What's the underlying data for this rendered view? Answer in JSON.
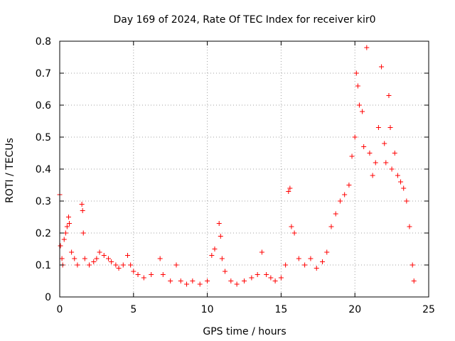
{
  "chart_data": {
    "type": "scatter",
    "title": "Day 169 of 2024, Rate Of TEC Index for receiver kir0",
    "xlabel": "GPS time / hours",
    "ylabel": "ROTI / TECUs",
    "xlim": [
      0,
      25
    ],
    "ylim": [
      0,
      0.8
    ],
    "x_ticks": [
      "0",
      "5",
      "10",
      "15",
      "20",
      "25"
    ],
    "y_ticks": [
      "0",
      "0.1",
      "0.2",
      "0.3",
      "0.4",
      "0.5",
      "0.6",
      "0.7",
      "0.8"
    ],
    "grid": true,
    "marker": "+",
    "color": "#ff0000",
    "series": [
      {
        "name": "ROTI",
        "points": [
          [
            0.0,
            0.32
          ],
          [
            0.05,
            0.16
          ],
          [
            0.15,
            0.12
          ],
          [
            0.2,
            0.1
          ],
          [
            0.3,
            0.18
          ],
          [
            0.4,
            0.2
          ],
          [
            0.5,
            0.22
          ],
          [
            0.6,
            0.25
          ],
          [
            0.65,
            0.23
          ],
          [
            0.8,
            0.14
          ],
          [
            1.0,
            0.12
          ],
          [
            1.2,
            0.1
          ],
          [
            1.5,
            0.29
          ],
          [
            1.55,
            0.27
          ],
          [
            1.6,
            0.2
          ],
          [
            1.7,
            0.12
          ],
          [
            2.0,
            0.1
          ],
          [
            2.3,
            0.11
          ],
          [
            2.5,
            0.12
          ],
          [
            2.7,
            0.14
          ],
          [
            3.0,
            0.13
          ],
          [
            3.3,
            0.12
          ],
          [
            3.5,
            0.11
          ],
          [
            3.8,
            0.1
          ],
          [
            4.0,
            0.09
          ],
          [
            4.3,
            0.1
          ],
          [
            4.6,
            0.13
          ],
          [
            4.8,
            0.1
          ],
          [
            5.0,
            0.08
          ],
          [
            5.3,
            0.07
          ],
          [
            5.7,
            0.06
          ],
          [
            6.2,
            0.07
          ],
          [
            6.8,
            0.12
          ],
          [
            7.0,
            0.07
          ],
          [
            7.5,
            0.05
          ],
          [
            7.9,
            0.1
          ],
          [
            8.2,
            0.05
          ],
          [
            8.6,
            0.04
          ],
          [
            9.0,
            0.05
          ],
          [
            9.5,
            0.04
          ],
          [
            10.0,
            0.05
          ],
          [
            10.3,
            0.13
          ],
          [
            10.5,
            0.15
          ],
          [
            10.8,
            0.23
          ],
          [
            10.9,
            0.19
          ],
          [
            11.0,
            0.12
          ],
          [
            11.2,
            0.08
          ],
          [
            11.6,
            0.05
          ],
          [
            12.0,
            0.04
          ],
          [
            12.5,
            0.05
          ],
          [
            13.0,
            0.06
          ],
          [
            13.4,
            0.07
          ],
          [
            13.7,
            0.14
          ],
          [
            14.0,
            0.07
          ],
          [
            14.3,
            0.06
          ],
          [
            14.6,
            0.05
          ],
          [
            15.0,
            0.06
          ],
          [
            15.3,
            0.1
          ],
          [
            15.5,
            0.33
          ],
          [
            15.6,
            0.34
          ],
          [
            15.7,
            0.22
          ],
          [
            15.9,
            0.2
          ],
          [
            16.2,
            0.12
          ],
          [
            16.6,
            0.1
          ],
          [
            17.0,
            0.12
          ],
          [
            17.4,
            0.09
          ],
          [
            17.8,
            0.11
          ],
          [
            18.1,
            0.14
          ],
          [
            18.4,
            0.22
          ],
          [
            18.7,
            0.26
          ],
          [
            19.0,
            0.3
          ],
          [
            19.3,
            0.32
          ],
          [
            19.6,
            0.35
          ],
          [
            19.8,
            0.44
          ],
          [
            20.0,
            0.5
          ],
          [
            20.1,
            0.7
          ],
          [
            20.2,
            0.66
          ],
          [
            20.3,
            0.6
          ],
          [
            20.5,
            0.58
          ],
          [
            20.6,
            0.47
          ],
          [
            20.8,
            0.78
          ],
          [
            21.0,
            0.45
          ],
          [
            21.2,
            0.38
          ],
          [
            21.4,
            0.42
          ],
          [
            21.6,
            0.53
          ],
          [
            21.8,
            0.72
          ],
          [
            22.0,
            0.48
          ],
          [
            22.1,
            0.42
          ],
          [
            22.3,
            0.63
          ],
          [
            22.4,
            0.53
          ],
          [
            22.5,
            0.4
          ],
          [
            22.7,
            0.45
          ],
          [
            22.9,
            0.38
          ],
          [
            23.1,
            0.36
          ],
          [
            23.3,
            0.34
          ],
          [
            23.5,
            0.3
          ],
          [
            23.7,
            0.22
          ],
          [
            23.9,
            0.1
          ],
          [
            24.0,
            0.05
          ]
        ]
      }
    ]
  }
}
